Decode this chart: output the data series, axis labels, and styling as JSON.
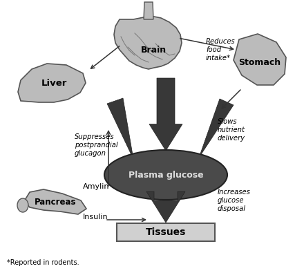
{
  "bg_color": "#ffffff",
  "organ_color": "#bbbbbb",
  "organ_edge": "#555555",
  "arrow_color": "#333333",
  "plasma_ellipse_color": "#4a4a4a",
  "plasma_text_color": "#dddddd",
  "tissues_box_color": "#d0d0d0",
  "tissues_box_edge": "#555555",
  "dark_arrow_color": "#383838",
  "labels": {
    "brain": "Brain",
    "liver": "Liver",
    "stomach": "Stomach",
    "pancreas": "Pancreas",
    "amylin": "Amylin",
    "insulin": "Insulin",
    "plasma": "Plasma glucose",
    "tissues": "Tissues",
    "suppresses": "Suppresses\npostprandial\nglucagon",
    "reduces": "Reduces\nfood\nintake*",
    "slows": "Slows\nnutrient\ndelivery",
    "increases": "Increases\nglucose\ndisposal",
    "footnote": "*Reported in rodents."
  },
  "figsize": [
    4.4,
    3.95
  ],
  "dpi": 100
}
